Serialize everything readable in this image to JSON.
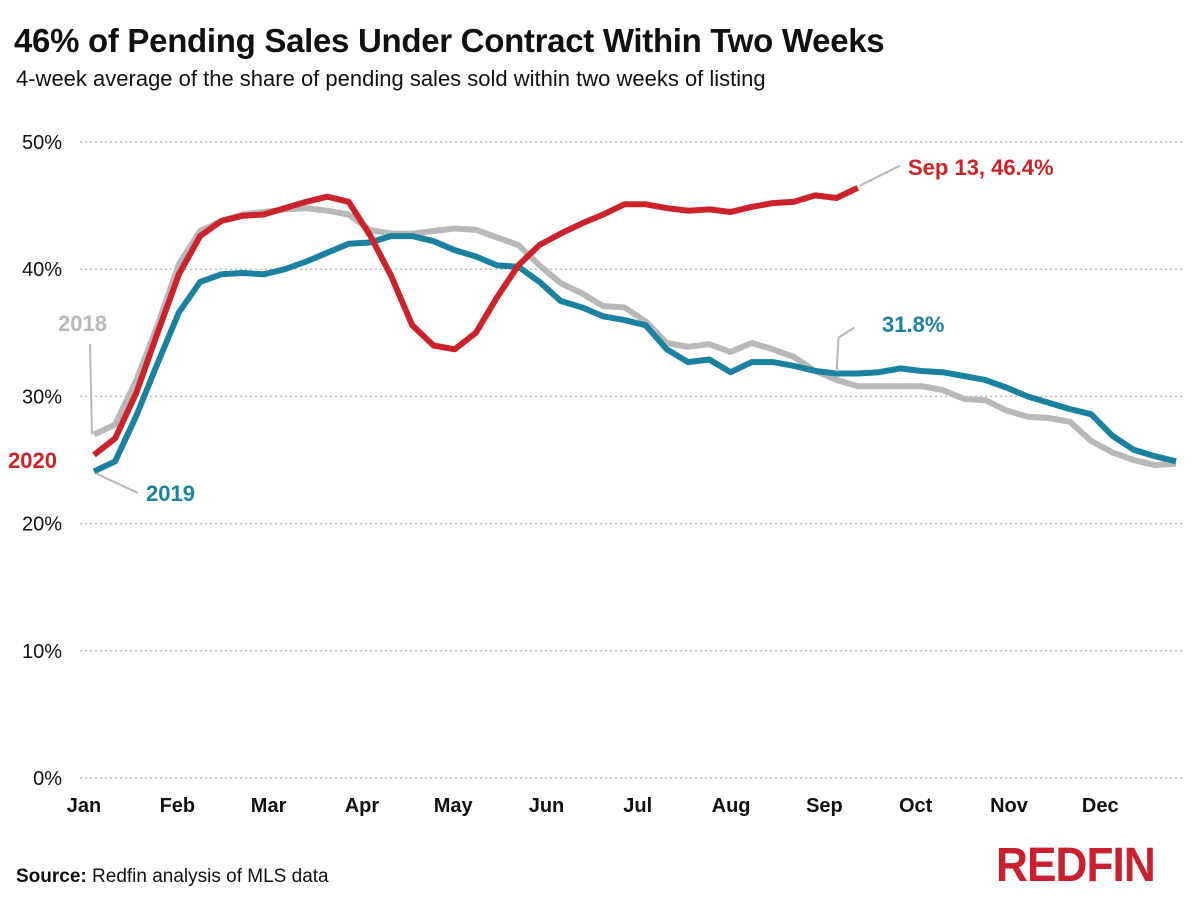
{
  "title": "46% of Pending Sales Under Contract Within Two Weeks",
  "subtitle": "4-week average of the share of pending sales sold within two weeks of listing",
  "source_label": "Source:",
  "source_text": "Redfin analysis of MLS data",
  "logo_text": "REDFIN",
  "colors": {
    "2018": "#b8b8b8",
    "2019": "#1a82a0",
    "2020": "#cc2229",
    "grid": "#bdbdbd"
  },
  "chart_data": {
    "type": "line",
    "ylim": [
      0,
      50
    ],
    "y_ticks": [
      0,
      10,
      20,
      30,
      40,
      50
    ],
    "y_tick_labels": [
      "0%",
      "10%",
      "20%",
      "30%",
      "40%",
      "50%"
    ],
    "x_tick_labels": [
      "Jan",
      "Feb",
      "Mar",
      "Apr",
      "May",
      "Jun",
      "Jul",
      "Aug",
      "Sep",
      "Oct",
      "Nov",
      "Dec"
    ],
    "grid": "horizontal-dotted",
    "series": [
      {
        "name": "2018",
        "color": "#b8b8b8",
        "week": [
          1,
          2,
          3,
          4,
          5,
          6,
          7,
          8,
          9,
          10,
          11,
          12,
          13,
          14,
          15,
          16,
          17,
          18,
          19,
          20,
          21,
          22,
          23,
          24,
          25,
          26,
          27,
          28,
          29,
          30,
          31,
          32,
          33,
          34,
          35,
          36,
          37,
          38,
          39,
          40,
          41,
          42,
          43,
          44,
          45,
          46,
          47,
          48,
          49,
          50,
          51,
          52
        ],
        "values": [
          27.0,
          27.8,
          31.3,
          35.6,
          40.4,
          43.0,
          43.8,
          44.3,
          44.5,
          44.7,
          44.8,
          44.6,
          44.3,
          43.1,
          42.8,
          42.8,
          43.0,
          43.2,
          43.1,
          42.5,
          41.9,
          40.3,
          38.9,
          38.1,
          37.1,
          37.0,
          35.9,
          34.2,
          33.9,
          34.1,
          33.5,
          34.2,
          33.7,
          33.1,
          32.0,
          31.3,
          30.8,
          30.8,
          30.8,
          30.8,
          30.5,
          29.8,
          29.7,
          28.9,
          28.4,
          28.3,
          28.0,
          26.5,
          25.6,
          25.0,
          24.6,
          24.7
        ]
      },
      {
        "name": "2019",
        "color": "#1a82a0",
        "week": [
          1,
          2,
          3,
          4,
          5,
          6,
          7,
          8,
          9,
          10,
          11,
          12,
          13,
          14,
          15,
          16,
          17,
          18,
          19,
          20,
          21,
          22,
          23,
          24,
          25,
          26,
          27,
          28,
          29,
          30,
          31,
          32,
          33,
          34,
          35,
          36,
          37,
          38,
          39,
          40,
          41,
          42,
          43,
          44,
          45,
          46,
          47,
          48,
          49,
          50,
          51,
          52
        ],
        "values": [
          24.1,
          24.9,
          28.5,
          32.6,
          36.6,
          39.0,
          39.6,
          39.7,
          39.6,
          40.0,
          40.6,
          41.3,
          42.0,
          42.1,
          42.6,
          42.6,
          42.2,
          41.5,
          41.0,
          40.3,
          40.2,
          39.0,
          37.5,
          37.0,
          36.3,
          36.0,
          35.6,
          33.7,
          32.7,
          32.9,
          31.9,
          32.7,
          32.7,
          32.4,
          32.0,
          31.8,
          31.8,
          31.9,
          32.2,
          32.0,
          31.9,
          31.6,
          31.3,
          30.7,
          30.0,
          29.5,
          29.0,
          28.6,
          26.9,
          25.8,
          25.3,
          24.9
        ]
      },
      {
        "name": "2020",
        "color": "#cc2229",
        "week": [
          1,
          2,
          3,
          4,
          5,
          6,
          7,
          8,
          9,
          10,
          11,
          12,
          13,
          14,
          15,
          16,
          17,
          18,
          19,
          20,
          21,
          22,
          23,
          24,
          25,
          26,
          27,
          28,
          29,
          30,
          31,
          32,
          33,
          34,
          35,
          36,
          37
        ],
        "values": [
          25.4,
          26.7,
          30.3,
          35.0,
          39.6,
          42.6,
          43.8,
          44.2,
          44.3,
          44.8,
          45.3,
          45.7,
          45.3,
          42.7,
          39.5,
          35.6,
          34.0,
          33.7,
          35.0,
          37.8,
          40.3,
          41.9,
          42.8,
          43.6,
          44.3,
          45.1,
          45.1,
          44.8,
          44.6,
          44.7,
          44.5,
          44.9,
          45.2,
          45.3,
          45.8,
          45.6,
          46.4
        ]
      }
    ],
    "annotations": [
      {
        "text": "Sep 13, 46.4%",
        "series": "2020"
      },
      {
        "text": "31.8%",
        "series": "2019"
      },
      {
        "text": "2018",
        "series": "2018"
      },
      {
        "text": "2019",
        "series": "2019"
      },
      {
        "text": "2020",
        "series": "2020"
      }
    ]
  }
}
